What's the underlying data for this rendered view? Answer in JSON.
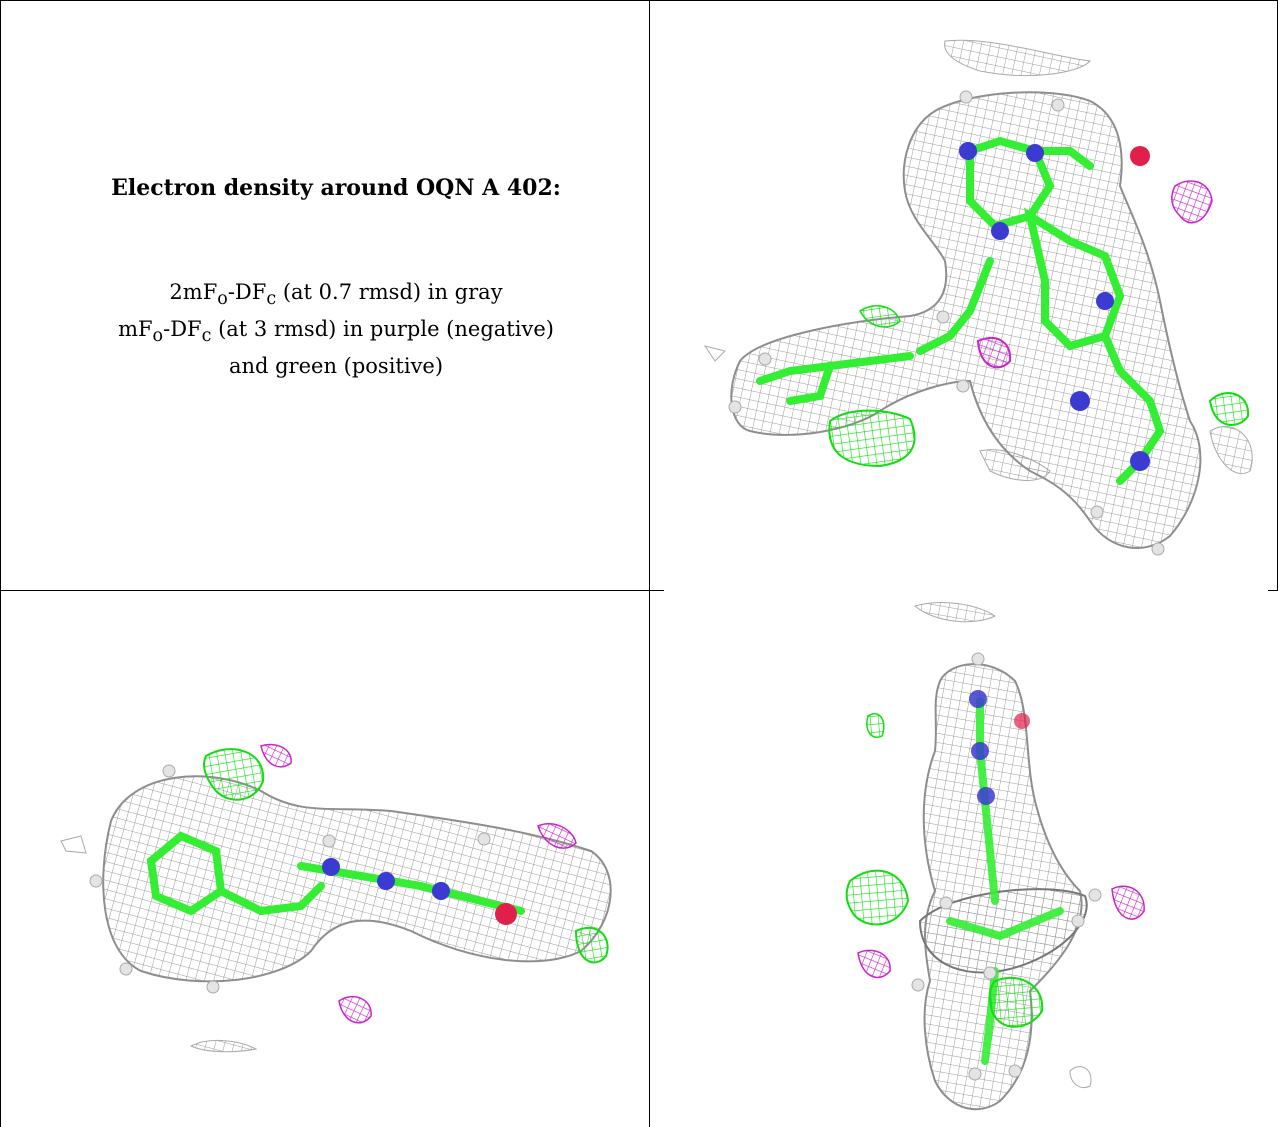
{
  "caption": {
    "title": "Electron density around OQN A 402:",
    "line1_pre": "2mF",
    "line1_sub1": "o",
    "line1_mid": "-DF",
    "line1_sub2": "c",
    "line1_post": " (at 0.7 rmsd) in gray",
    "line2_pre": "mF",
    "line2_sub1": "o",
    "line2_mid": "-DF",
    "line2_sub2": "c",
    "line2_post": " (at 3 rmsd) in purple (negative)",
    "line3": "and green (positive)"
  },
  "colors": {
    "grid": "#b8b8b8",
    "gridDark": "#8a8a8a",
    "carbon": "#33ee33",
    "nitrogen": "#3b3bd1",
    "oxygen": "#e0204a",
    "negative": "#cc22cc",
    "positive": "#11dd11",
    "hydrogen": "#dedede"
  },
  "panels": [
    {
      "view": "top-right"
    },
    {
      "view": "bottom-left"
    },
    {
      "view": "bottom-right"
    }
  ]
}
